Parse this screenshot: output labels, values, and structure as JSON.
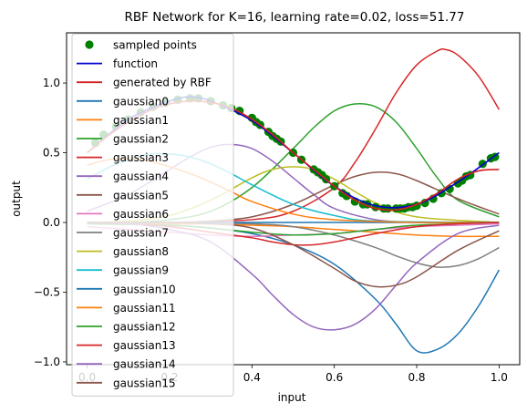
{
  "chart_data": {
    "type": "line",
    "title": "RBF Network for K=16, learning rate=0.02, loss=51.77",
    "xlabel": "input",
    "ylabel": "output",
    "xlim": [
      -0.05,
      1.05
    ],
    "ylim": [
      -1.02,
      1.36
    ],
    "xticks": [
      0.0,
      0.2,
      0.4,
      0.6,
      0.8,
      1.0
    ],
    "xtick_labels": [
      "0.0",
      "0.2",
      "0.4",
      "0.6",
      "0.8",
      "1.0"
    ],
    "yticks": [
      -1.0,
      -0.5,
      0.0,
      0.5,
      1.0
    ],
    "ytick_labels": [
      "−1.0",
      "−0.5",
      "0.0",
      "0.5",
      "1.0"
    ],
    "legend_position": "upper-left",
    "legend": [
      {
        "label": "sampled points",
        "color": "#008000",
        "marker": "circle"
      },
      {
        "label": "function",
        "color": "#0000cc",
        "marker": "line"
      },
      {
        "label": "generated by RBF",
        "color": "#d62020",
        "marker": "line"
      },
      {
        "label": "gaussian0",
        "color": "#1f77b4",
        "marker": "line"
      },
      {
        "label": "gaussian1",
        "color": "#ff7f0e",
        "marker": "line"
      },
      {
        "label": "gaussian2",
        "color": "#2ca02c",
        "marker": "line"
      },
      {
        "label": "gaussian3",
        "color": "#d62728",
        "marker": "line"
      },
      {
        "label": "gaussian4",
        "color": "#9467bd",
        "marker": "line"
      },
      {
        "label": "gaussian5",
        "color": "#8c564b",
        "marker": "line"
      },
      {
        "label": "gaussian6",
        "color": "#e377c2",
        "marker": "line"
      },
      {
        "label": "gaussian7",
        "color": "#7f7f7f",
        "marker": "line"
      },
      {
        "label": "gaussian8",
        "color": "#bcbd22",
        "marker": "line"
      },
      {
        "label": "gaussian9",
        "color": "#17becf",
        "marker": "line"
      },
      {
        "label": "gaussian10",
        "color": "#1f77b4",
        "marker": "line"
      },
      {
        "label": "gaussian11",
        "color": "#ff7f0e",
        "marker": "line"
      },
      {
        "label": "gaussian12",
        "color": "#2ca02c",
        "marker": "line"
      },
      {
        "label": "gaussian13",
        "color": "#d62728",
        "marker": "line"
      },
      {
        "label": "gaussian14",
        "color": "#9467bd",
        "marker": "line"
      },
      {
        "label": "gaussian15",
        "color": "#8c564b",
        "marker": "line"
      }
    ],
    "sampled_points": {
      "x": [
        0.02,
        0.04,
        0.07,
        0.1,
        0.13,
        0.16,
        0.19,
        0.22,
        0.25,
        0.27,
        0.3,
        0.33,
        0.35,
        0.37,
        0.4,
        0.41,
        0.42,
        0.44,
        0.45,
        0.46,
        0.47,
        0.5,
        0.52,
        0.55,
        0.56,
        0.57,
        0.58,
        0.6,
        0.62,
        0.63,
        0.65,
        0.67,
        0.68,
        0.7,
        0.72,
        0.73,
        0.75,
        0.76,
        0.77,
        0.78,
        0.79,
        0.8,
        0.82,
        0.84,
        0.86,
        0.88,
        0.9,
        0.91,
        0.92,
        0.93,
        0.96,
        0.98,
        0.99
      ],
      "y": [
        0.57,
        0.63,
        0.69,
        0.74,
        0.79,
        0.83,
        0.86,
        0.88,
        0.89,
        0.89,
        0.87,
        0.84,
        0.82,
        0.8,
        0.75,
        0.72,
        0.7,
        0.65,
        0.62,
        0.6,
        0.58,
        0.5,
        0.45,
        0.38,
        0.36,
        0.34,
        0.31,
        0.26,
        0.21,
        0.19,
        0.15,
        0.13,
        0.13,
        0.11,
        0.1,
        0.1,
        0.1,
        0.1,
        0.1,
        0.11,
        0.11,
        0.12,
        0.14,
        0.17,
        0.21,
        0.24,
        0.28,
        0.3,
        0.33,
        0.34,
        0.42,
        0.46,
        0.47
      ]
    },
    "series": [
      {
        "name": "function",
        "color": "#0000cc",
        "x": [
          0.0,
          0.1,
          0.2,
          0.25,
          0.3,
          0.4,
          0.5,
          0.6,
          0.7,
          0.8,
          0.9,
          1.0
        ],
        "y": [
          0.5,
          0.74,
          0.87,
          0.9,
          0.87,
          0.73,
          0.5,
          0.26,
          0.12,
          0.13,
          0.29,
          0.5
        ]
      },
      {
        "name": "generated by RBF",
        "color": "#d62020",
        "x": [
          0.0,
          0.05,
          0.1,
          0.15,
          0.2,
          0.25,
          0.3,
          0.35,
          0.4,
          0.45,
          0.5,
          0.55,
          0.6,
          0.65,
          0.7,
          0.75,
          0.8,
          0.85,
          0.9,
          0.95,
          1.0
        ],
        "y": [
          0.5,
          0.62,
          0.72,
          0.8,
          0.85,
          0.87,
          0.86,
          0.82,
          0.74,
          0.63,
          0.5,
          0.38,
          0.26,
          0.16,
          0.1,
          0.09,
          0.13,
          0.21,
          0.31,
          0.37,
          0.38
        ]
      },
      {
        "name": "gaussian0",
        "color": "#1f77b4",
        "x": [
          0.0,
          0.1,
          0.2,
          0.3,
          0.4,
          0.5,
          0.6,
          0.7,
          0.75,
          0.8,
          0.85,
          0.9,
          0.95,
          1.0
        ],
        "y": [
          0.0,
          -0.01,
          -0.02,
          -0.04,
          -0.08,
          -0.16,
          -0.3,
          -0.55,
          -0.73,
          -0.92,
          -0.91,
          -0.8,
          -0.6,
          -0.34
        ]
      },
      {
        "name": "gaussian1",
        "color": "#ff7f0e",
        "x": [
          0.0,
          0.1,
          0.2,
          0.3,
          0.4,
          0.5,
          0.6,
          0.7,
          0.8,
          0.9,
          0.95,
          1.0
        ],
        "y": [
          0.0,
          0.0,
          -0.01,
          -0.01,
          -0.02,
          -0.03,
          -0.05,
          -0.07,
          -0.09,
          -0.1,
          -0.1,
          -0.1
        ]
      },
      {
        "name": "gaussian2",
        "color": "#2ca02c",
        "x": [
          0.0,
          0.1,
          0.2,
          0.3,
          0.4,
          0.5,
          0.55,
          0.6,
          0.65,
          0.7,
          0.75,
          0.8,
          0.85,
          0.9,
          1.0
        ],
        "y": [
          0.0,
          0.0,
          0.02,
          0.08,
          0.25,
          0.53,
          0.68,
          0.8,
          0.85,
          0.83,
          0.72,
          0.53,
          0.32,
          0.16,
          0.04
        ]
      },
      {
        "name": "gaussian3",
        "color": "#d62728",
        "x": [
          0.0,
          0.2,
          0.4,
          0.5,
          0.6,
          0.65,
          0.7,
          0.75,
          0.8,
          0.85,
          0.87,
          0.9,
          0.95,
          1.0
        ],
        "y": [
          0.0,
          0.0,
          0.02,
          0.08,
          0.25,
          0.43,
          0.67,
          0.93,
          1.13,
          1.23,
          1.24,
          1.2,
          1.05,
          0.81
        ]
      },
      {
        "name": "gaussian4",
        "color": "#9467bd",
        "x": [
          0.0,
          0.1,
          0.2,
          0.25,
          0.3,
          0.35,
          0.4,
          0.45,
          0.5,
          0.55,
          0.6,
          0.7,
          0.8,
          0.9,
          1.0
        ],
        "y": [
          0.08,
          0.2,
          0.38,
          0.47,
          0.54,
          0.56,
          0.53,
          0.44,
          0.32,
          0.2,
          0.1,
          0.02,
          0.0,
          0.0,
          0.0
        ]
      },
      {
        "name": "gaussian5",
        "color": "#8c564b",
        "x": [
          0.0,
          0.2,
          0.3,
          0.4,
          0.5,
          0.6,
          0.65,
          0.7,
          0.75,
          0.8,
          0.9,
          1.0
        ],
        "y": [
          0.0,
          0.0,
          0.01,
          0.04,
          0.13,
          0.27,
          0.33,
          0.36,
          0.35,
          0.3,
          0.17,
          0.06
        ]
      },
      {
        "name": "gaussian6",
        "color": "#e377c2",
        "x": [
          0.0,
          0.1,
          0.2,
          0.3,
          0.4,
          0.5,
          0.6,
          0.7,
          0.8,
          0.9,
          1.0
        ],
        "y": [
          -0.03,
          -0.05,
          -0.07,
          -0.09,
          -0.1,
          -0.09,
          -0.08,
          -0.05,
          -0.03,
          -0.02,
          -0.01
        ]
      },
      {
        "name": "gaussian7",
        "color": "#7f7f7f",
        "x": [
          0.0,
          0.2,
          0.4,
          0.5,
          0.6,
          0.7,
          0.75,
          0.8,
          0.85,
          0.9,
          0.95,
          1.0
        ],
        "y": [
          0.0,
          0.0,
          -0.01,
          -0.03,
          -0.09,
          -0.18,
          -0.24,
          -0.29,
          -0.32,
          -0.31,
          -0.26,
          -0.18
        ]
      },
      {
        "name": "gaussian8",
        "color": "#bcbd22",
        "x": [
          0.0,
          0.1,
          0.2,
          0.3,
          0.4,
          0.45,
          0.5,
          0.55,
          0.6,
          0.7,
          0.8,
          1.0
        ],
        "y": [
          0.0,
          0.01,
          0.05,
          0.16,
          0.32,
          0.38,
          0.4,
          0.38,
          0.31,
          0.14,
          0.04,
          0.0
        ]
      },
      {
        "name": "gaussian9",
        "color": "#17becf",
        "x": [
          0.0,
          0.05,
          0.1,
          0.15,
          0.2,
          0.25,
          0.3,
          0.35,
          0.4,
          0.5,
          0.6,
          0.7,
          1.0
        ],
        "y": [
          0.31,
          0.39,
          0.45,
          0.49,
          0.49,
          0.47,
          0.42,
          0.35,
          0.27,
          0.13,
          0.05,
          0.01,
          0.0
        ]
      },
      {
        "name": "gaussian10",
        "color": "#1f77b4",
        "x": [
          0.0,
          0.2,
          0.4,
          0.6,
          0.8,
          1.0
        ],
        "y": [
          0.0,
          0.0,
          0.0,
          0.0,
          0.0,
          0.0
        ]
      },
      {
        "name": "gaussian11",
        "color": "#ff7f0e",
        "x": [
          0.0,
          0.05,
          0.1,
          0.15,
          0.2,
          0.25,
          0.3,
          0.35,
          0.4,
          0.5,
          0.6,
          0.8,
          1.0
        ],
        "y": [
          0.41,
          0.45,
          0.46,
          0.44,
          0.4,
          0.35,
          0.29,
          0.22,
          0.15,
          0.06,
          0.02,
          0.0,
          0.0
        ]
      },
      {
        "name": "gaussian12",
        "color": "#2ca02c",
        "x": [
          0.0,
          0.2,
          0.3,
          0.4,
          0.5,
          0.6,
          0.7,
          0.8,
          1.0
        ],
        "y": [
          -0.01,
          -0.02,
          -0.04,
          -0.07,
          -0.09,
          -0.08,
          -0.05,
          -0.02,
          0.0
        ]
      },
      {
        "name": "gaussian13",
        "color": "#d62728",
        "x": [
          0.0,
          0.1,
          0.2,
          0.3,
          0.4,
          0.45,
          0.5,
          0.55,
          0.6,
          0.7,
          0.8,
          0.9,
          1.0
        ],
        "y": [
          0.0,
          -0.01,
          -0.03,
          -0.07,
          -0.11,
          -0.14,
          -0.16,
          -0.16,
          -0.14,
          -0.08,
          -0.03,
          -0.01,
          0.0
        ]
      },
      {
        "name": "gaussian14",
        "color": "#9467bd",
        "x": [
          0.0,
          0.1,
          0.2,
          0.3,
          0.4,
          0.45,
          0.5,
          0.55,
          0.6,
          0.65,
          0.7,
          0.75,
          0.8,
          0.9,
          1.0
        ],
        "y": [
          0.0,
          -0.01,
          -0.05,
          -0.14,
          -0.37,
          -0.52,
          -0.66,
          -0.75,
          -0.77,
          -0.73,
          -0.62,
          -0.45,
          -0.29,
          -0.08,
          -0.02
        ]
      },
      {
        "name": "gaussian15",
        "color": "#8c564b",
        "x": [
          0.0,
          0.2,
          0.3,
          0.4,
          0.5,
          0.6,
          0.65,
          0.7,
          0.75,
          0.8,
          0.9,
          1.0
        ],
        "y": [
          0.0,
          0.0,
          -0.01,
          -0.04,
          -0.16,
          -0.33,
          -0.42,
          -0.46,
          -0.45,
          -0.39,
          -0.2,
          -0.06
        ]
      }
    ]
  }
}
